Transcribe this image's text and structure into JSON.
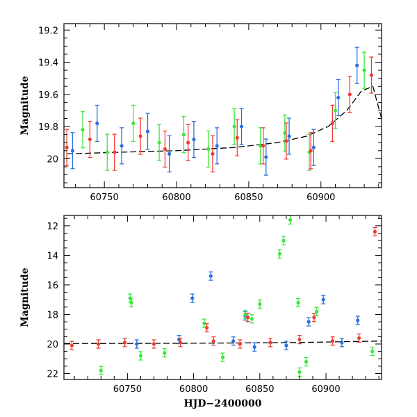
{
  "chart_data": [
    {
      "type": "scatter",
      "panel": "top",
      "xlabel": "",
      "ylabel": "Magnitude",
      "xlim": [
        60722,
        60942
      ],
      "ylim": [
        19.16,
        20.18
      ],
      "y_inverted": true,
      "x_ticks": [
        60750,
        60800,
        60850,
        60900
      ],
      "y_ticks": [
        19.2,
        19.4,
        19.6,
        19.8,
        20
      ],
      "y_tick_labels": [
        "19.2",
        "19.4",
        "19.6",
        "19.8",
        "20"
      ],
      "grid": false,
      "legend": "none",
      "series": [
        {
          "color": "#2a6fe0",
          "x": [
            60728,
            60745,
            60762,
            60780,
            60795,
            60812,
            60828,
            60845,
            60862,
            60878,
            60895,
            60912,
            60925
          ],
          "y": [
            19.95,
            19.78,
            19.92,
            19.83,
            19.97,
            19.88,
            19.92,
            19.8,
            19.99,
            19.86,
            19.93,
            19.62,
            19.42
          ]
        },
        {
          "color": "#3ce63c",
          "x": [
            60735,
            60752,
            60770,
            60788,
            60805,
            60822,
            60840,
            60858,
            60875,
            60892,
            60910,
            60930
          ],
          "y": [
            19.82,
            19.96,
            19.78,
            19.9,
            19.85,
            19.94,
            19.8,
            19.92,
            19.84,
            19.96,
            19.7,
            19.45
          ]
        },
        {
          "color": "#f03c32",
          "x": [
            60724,
            60740,
            60757,
            60775,
            60792,
            60808,
            60825,
            60842,
            60860,
            60876,
            60893,
            60908,
            60920,
            60935
          ],
          "y": [
            19.93,
            19.88,
            19.96,
            19.86,
            19.94,
            19.9,
            19.97,
            19.87,
            19.92,
            19.89,
            19.95,
            19.78,
            19.6,
            19.48
          ]
        }
      ],
      "model_curve": {
        "color": "#000000",
        "x": [
          60724,
          60760,
          60800,
          60840,
          60870,
          60890,
          60905,
          60918,
          60928,
          60936,
          60942
        ],
        "y": [
          19.97,
          19.96,
          19.95,
          19.93,
          19.9,
          19.86,
          19.8,
          19.7,
          19.58,
          19.55,
          19.75
        ]
      }
    },
    {
      "type": "scatter",
      "panel": "bottom",
      "xlabel": "HJD−2400000",
      "ylabel": "Magnitude",
      "xlim": [
        60702,
        60942
      ],
      "ylim": [
        11.3,
        22.4
      ],
      "y_inverted": true,
      "x_ticks": [
        60750,
        60800,
        60850,
        60900
      ],
      "y_ticks": [
        12,
        14,
        16,
        18,
        20,
        22
      ],
      "grid": false,
      "legend": "none",
      "series": [
        {
          "color": "#2a6fe0",
          "x": [
            60799,
            60813,
            60839,
            60898,
            60924,
            60887,
            60757,
            60830,
            60870,
            60912,
            60846,
            60789
          ],
          "y": [
            16.9,
            15.4,
            18.1,
            17.0,
            18.4,
            18.5,
            20.0,
            19.8,
            20.1,
            19.9,
            20.2,
            19.7
          ]
        },
        {
          "color": "#3ce63c",
          "x": [
            60752,
            60753,
            60808,
            60839,
            60844,
            60850,
            60865,
            60868,
            60873,
            60879,
            60893,
            60730,
            60760,
            60778,
            60822,
            60880,
            60885,
            60935
          ],
          "y": [
            16.9,
            17.2,
            18.6,
            18.0,
            18.3,
            17.3,
            13.9,
            13.0,
            11.6,
            17.2,
            17.8,
            21.8,
            20.8,
            20.6,
            20.9,
            21.9,
            21.2,
            20.5
          ]
        },
        {
          "color": "#f03c32",
          "x": [
            60937,
            60810,
            60841,
            60891,
            60708,
            60728,
            60748,
            60770,
            60790,
            60815,
            60835,
            60858,
            60880,
            60905,
            60925
          ],
          "y": [
            12.4,
            18.9,
            18.2,
            18.2,
            20.1,
            20.0,
            19.9,
            20.0,
            19.9,
            19.8,
            20.0,
            19.9,
            19.7,
            19.8,
            19.6
          ]
        }
      ],
      "model_curve": {
        "color": "#000000",
        "x": [
          60702,
          60800,
          60880,
          60942
        ],
        "y": [
          19.97,
          19.95,
          19.9,
          19.8
        ]
      }
    }
  ]
}
